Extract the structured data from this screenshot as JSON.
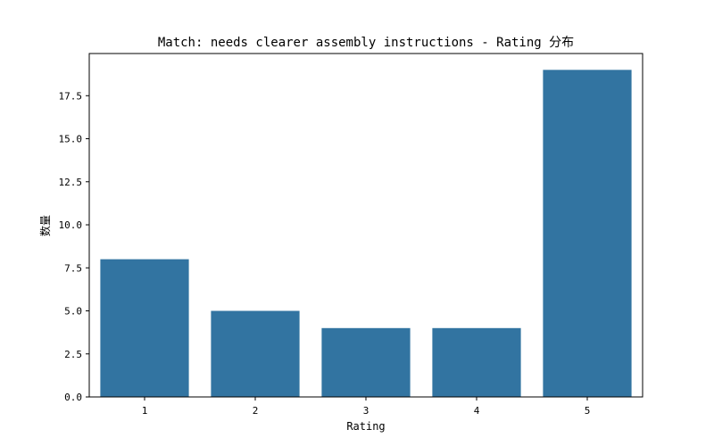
{
  "chart_data": {
    "type": "bar",
    "title": "Match: needs clearer assembly instructions - Rating 分布",
    "xlabel": "Rating",
    "ylabel": "数量",
    "categories": [
      "1",
      "2",
      "3",
      "4",
      "5"
    ],
    "values": [
      8,
      5,
      4,
      4,
      19
    ],
    "ylim": [
      0,
      19.95
    ],
    "yticks": [
      "0.0",
      "2.5",
      "5.0",
      "7.5",
      "10.0",
      "12.5",
      "15.0",
      "17.5"
    ],
    "grid": false,
    "bar_color": "#3274a1"
  }
}
